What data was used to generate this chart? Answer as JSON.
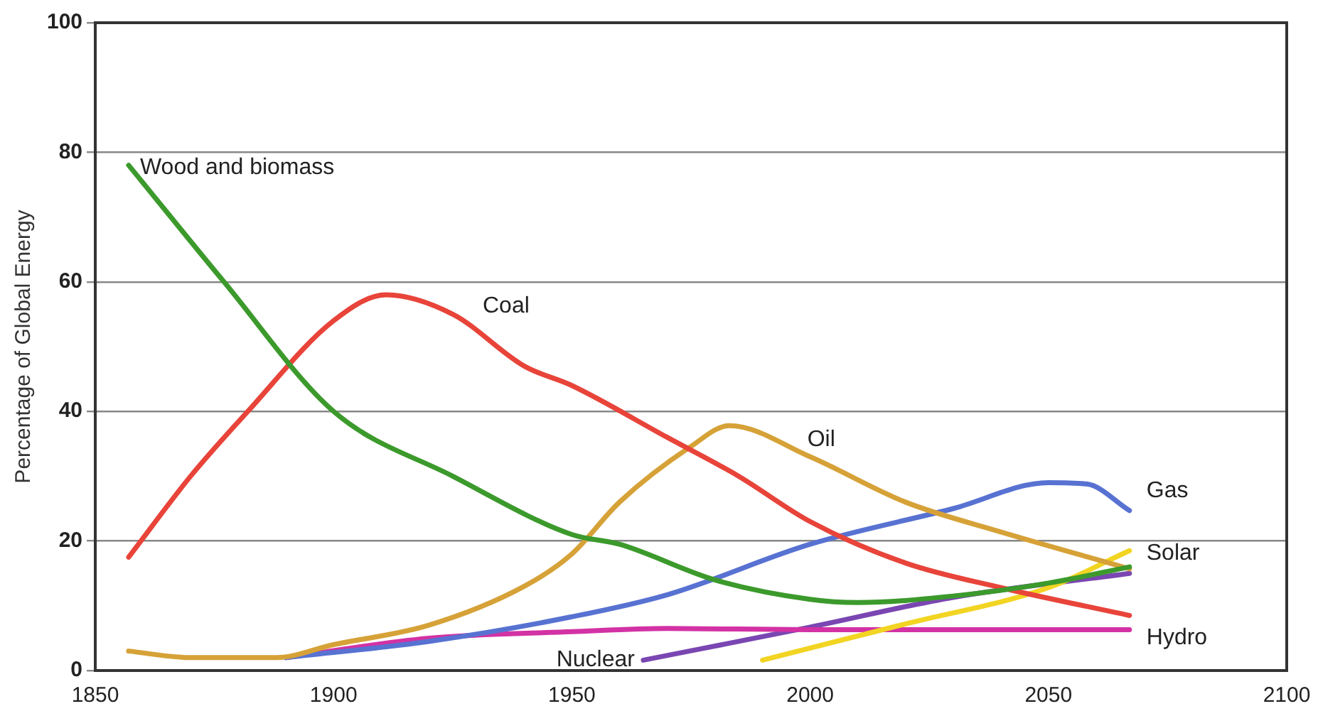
{
  "chart_data": {
    "type": "line",
    "ylabel": "Percentage of Global Energy",
    "xlim": [
      1850,
      2100
    ],
    "xticks": [
      1850,
      1900,
      1950,
      2000,
      2050,
      2100
    ],
    "ylim": [
      0,
      100
    ],
    "yticks": [
      0,
      20,
      40,
      60,
      80,
      100
    ],
    "grid": "y",
    "legend": false,
    "marker": "none",
    "line_style": "solid",
    "series": [
      {
        "name": "Wood and biomass",
        "color": "#3c9a2c",
        "x": [
          1857,
          1877,
          1900,
          1925,
          1950,
          1960,
          1980,
          2000,
          2010,
          2030,
          2050,
          2067
        ],
        "values": [
          78,
          60,
          40,
          30,
          21,
          19.5,
          14,
          11,
          10.5,
          11.5,
          13.5,
          16
        ]
      },
      {
        "name": "Coal",
        "color": "#e8443a",
        "x": [
          1857,
          1870,
          1882,
          1900,
          1911,
          1925,
          1940,
          1950,
          1970,
          1985,
          2000,
          2020,
          2040,
          2067
        ],
        "values": [
          17.5,
          30,
          40,
          54,
          58,
          55,
          47,
          44,
          36,
          30,
          23,
          16.6,
          12.8,
          8.5
        ]
      },
      {
        "name": "Oil",
        "color": "#d6a238",
        "x": [
          1857,
          1870,
          1888,
          1900,
          1920,
          1940,
          1950,
          1960,
          1975,
          1983,
          2000,
          2020,
          2040,
          2067
        ],
        "values": [
          3,
          2,
          2,
          4,
          7,
          13,
          18,
          26,
          34.6,
          37.8,
          33,
          26,
          21.4,
          15.7
        ]
      },
      {
        "name": "Gas",
        "color": "#5872d2",
        "x": [
          1890,
          1920,
          1950,
          1970,
          2000,
          2030,
          2050,
          2058,
          2067
        ],
        "values": [
          2,
          4.5,
          8.3,
          11.7,
          19.5,
          25,
          29,
          28.8,
          24.7
        ]
      },
      {
        "name": "Solar",
        "color": "#f2d422",
        "x": [
          1990,
          2020,
          2050,
          2067
        ],
        "values": [
          1.6,
          7.2,
          12.8,
          18.5
        ]
      },
      {
        "name": "Hydro",
        "color": "#d232a4",
        "x": [
          1890,
          1920,
          1950,
          1970,
          2000,
          2067
        ],
        "values": [
          2,
          5,
          6,
          6.5,
          6.3,
          6.3
        ]
      },
      {
        "name": "Nuclear",
        "color": "#7a46b2",
        "x": [
          1965,
          2000,
          2030,
          2067
        ],
        "values": [
          1.6,
          6.7,
          11.3,
          15
        ]
      }
    ]
  }
}
